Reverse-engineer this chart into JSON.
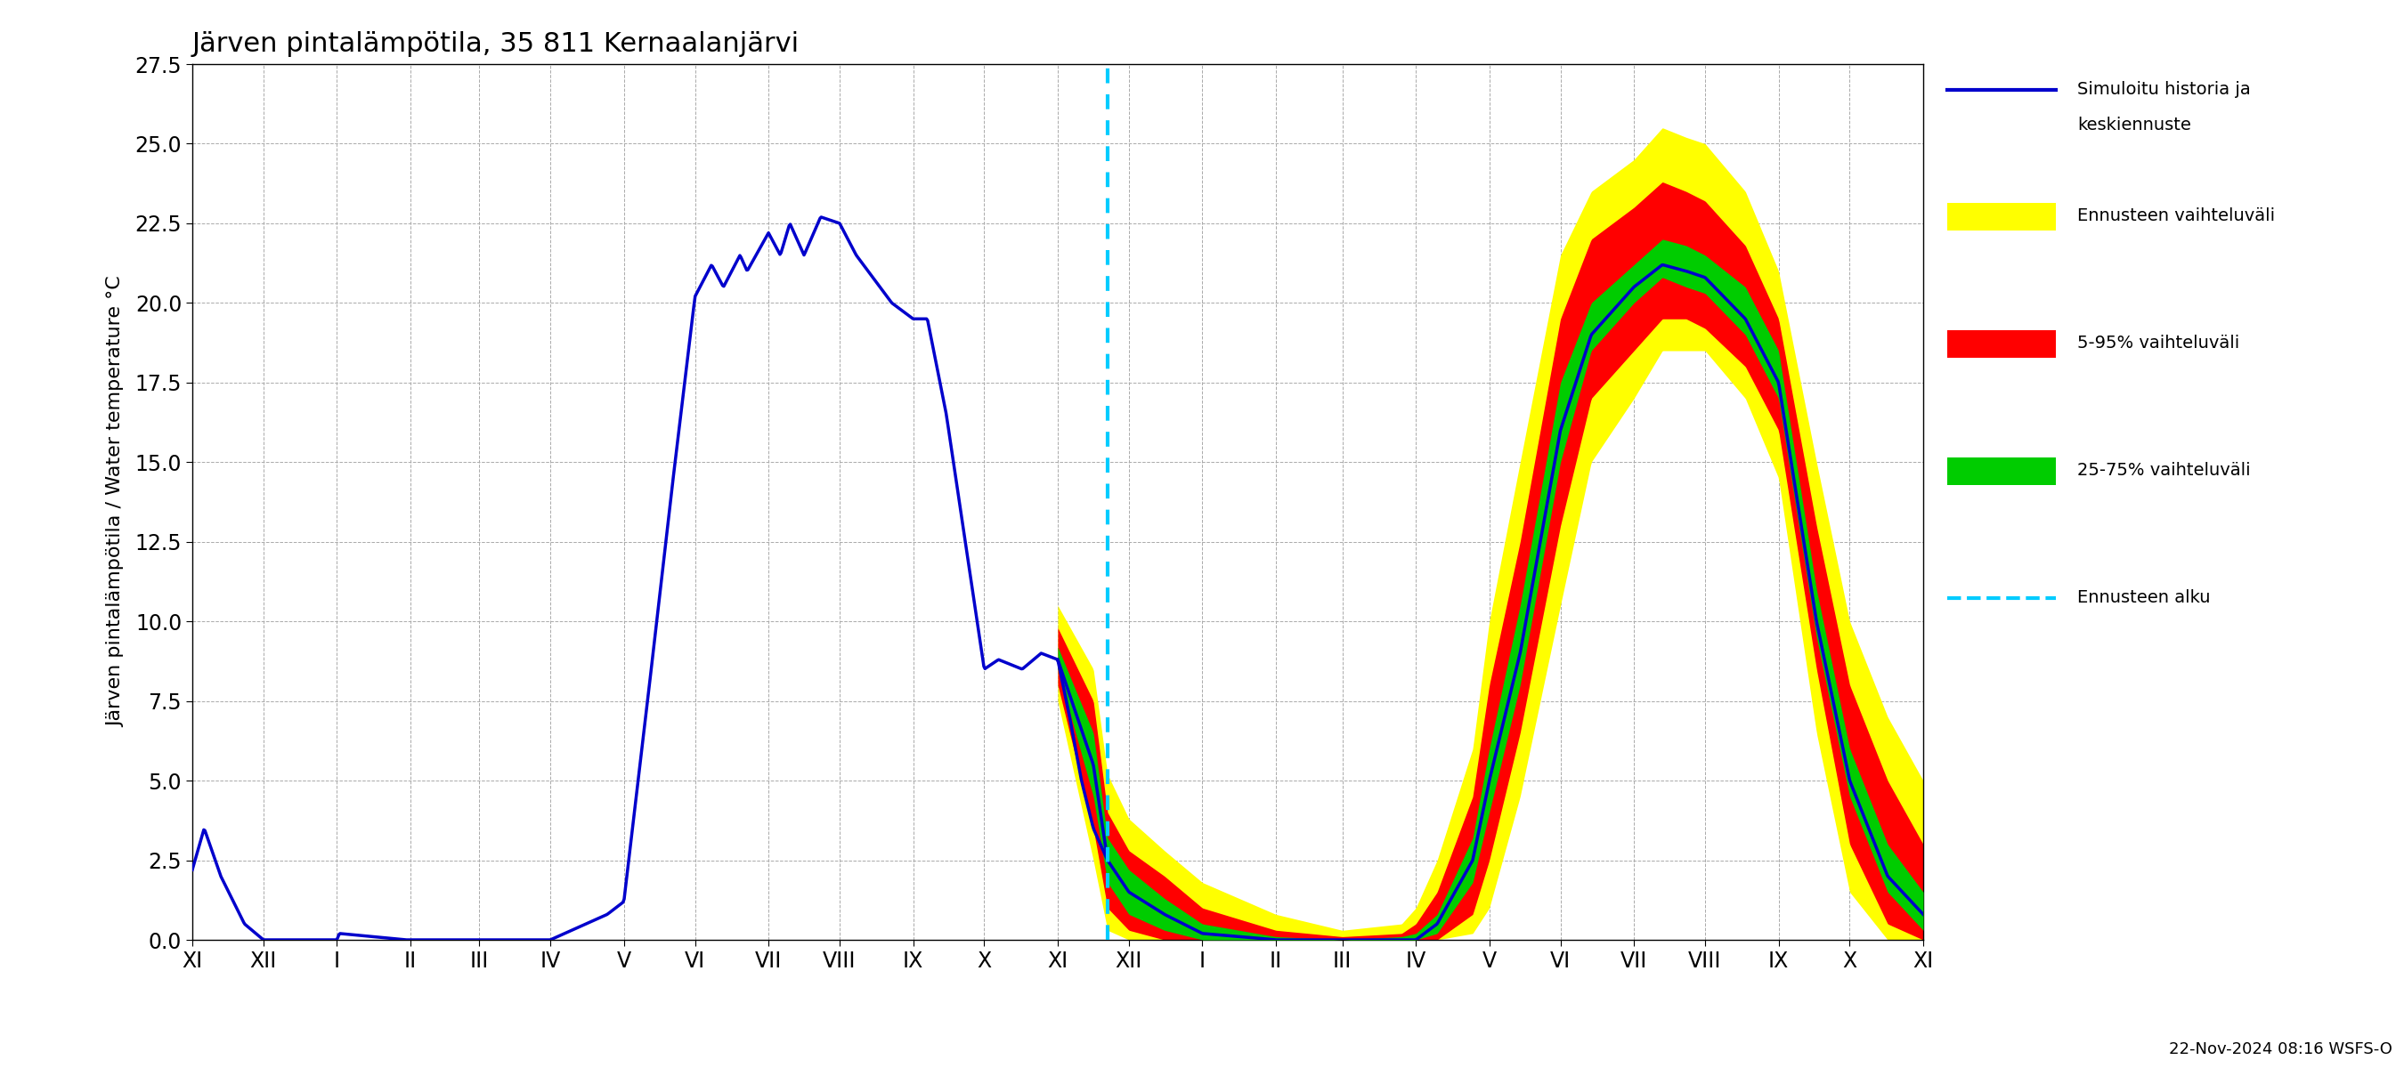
{
  "title": "Järven pintalämpötila, 35 811 Kernaalanjärvi",
  "ylabel": "Järven pintalämpötila / Water temperature °C",
  "ylim": [
    0.0,
    27.5
  ],
  "yticks": [
    0.0,
    2.5,
    5.0,
    7.5,
    10.0,
    12.5,
    15.0,
    17.5,
    20.0,
    22.5,
    25.0,
    27.5
  ],
  "footnote": "22-Nov-2024 08:16 WSFS-O",
  "legend_labels": [
    "Simuloitu historia ja\nkeskiennuste",
    "Ennusteen vaihteluväli",
    "5-95% vaihteluväli",
    "25-75% vaihteluväli",
    "Ennusteen alku"
  ],
  "legend_colors": [
    "#0000cc",
    "#ffff00",
    "#ff0000",
    "#00cc00",
    "#00ccff"
  ],
  "hist_color": "#0000cc",
  "yellow_color": "#ffff00",
  "red_color": "#ff0000",
  "green_color": "#00cc00",
  "cyan_color": "#00ccff",
  "background_color": "#ffffff",
  "grid_color": "#aaaaaa"
}
